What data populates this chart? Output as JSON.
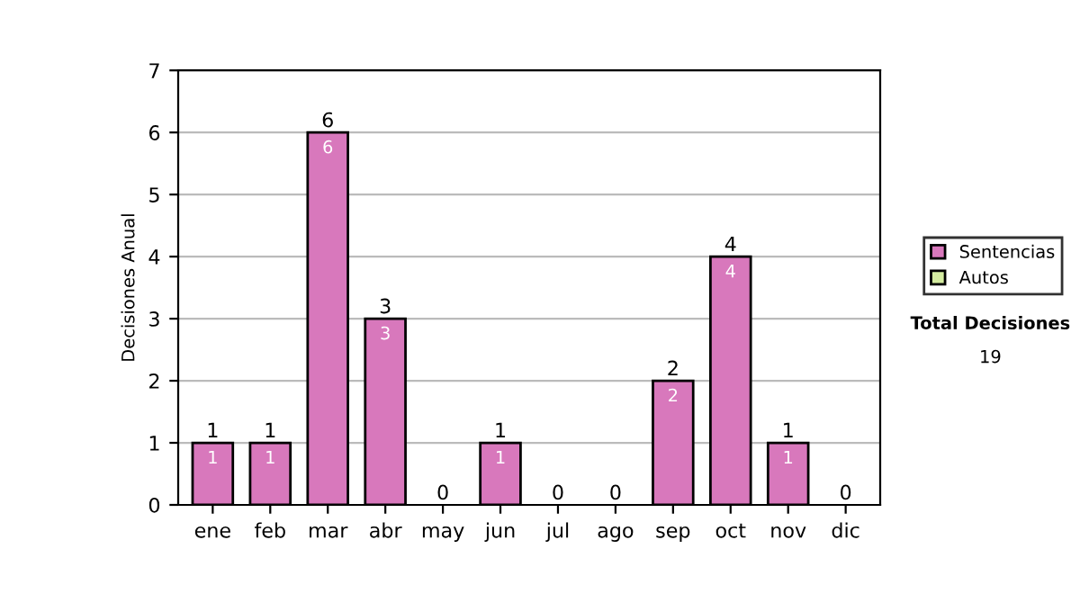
{
  "chart_data": {
    "type": "bar",
    "ylabel": "Decisiones Anual",
    "categories": [
      "ene",
      "feb",
      "mar",
      "abr",
      "may",
      "jun",
      "jul",
      "ago",
      "sep",
      "oct",
      "nov",
      "dic"
    ],
    "stacked": true,
    "series": [
      {
        "name": "Sentencias",
        "color": "#d878bc",
        "values": [
          1,
          1,
          6,
          3,
          0,
          1,
          0,
          0,
          2,
          4,
          1,
          0
        ],
        "value_labels": [
          "1",
          "1",
          "6",
          "3",
          null,
          "1",
          null,
          null,
          "2",
          "4",
          "1",
          null
        ]
      },
      {
        "name": "Autos",
        "color": "#d4eca0",
        "values": [
          0,
          0,
          0,
          0,
          0,
          0,
          0,
          0,
          0,
          0,
          0,
          0
        ]
      }
    ],
    "totals": [
      "1",
      "1",
      "6",
      "3",
      "0",
      "1",
      "0",
      "0",
      "2",
      "4",
      "1",
      "0"
    ],
    "ylim": [
      0,
      7
    ],
    "yticks": [
      0,
      1,
      2,
      3,
      4,
      5,
      6,
      7
    ],
    "grid": "y",
    "legend": "right",
    "annotations": [
      "Total Decisiones",
      "19"
    ]
  }
}
